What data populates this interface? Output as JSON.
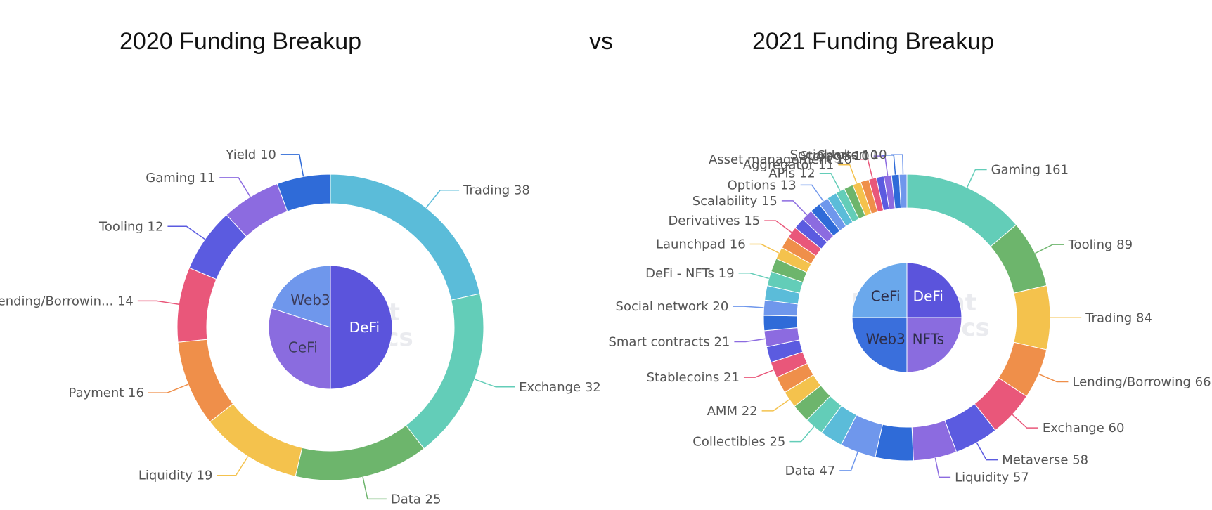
{
  "header": {
    "left_title": "2020 Funding Breakup",
    "vs": "vs",
    "right_title": "2021 Funding Breakup"
  },
  "watermark": [
    "Footprint",
    "Analytics"
  ],
  "chart_data": [
    {
      "type": "pie",
      "title": "2020 Funding Breakup",
      "inner": [
        {
          "label": "DeFi",
          "value": 0.5,
          "color": "#5b54dc",
          "text_color": "#ffffff"
        },
        {
          "label": "CeFi",
          "value": 0.3,
          "color": "#8a6cdf",
          "text_color": "#3c3c5a"
        },
        {
          "label": "Web3",
          "value": 0.2,
          "color": "#6f97ec",
          "text_color": "#3c3c5a"
        }
      ],
      "outer": [
        {
          "label": "Trading",
          "value": 38,
          "color": "#5bbcd9"
        },
        {
          "label": "Exchange",
          "value": 32,
          "color": "#63cdb8"
        },
        {
          "label": "Data",
          "value": 25,
          "color": "#6db56c"
        },
        {
          "label": "Liquidity",
          "value": 19,
          "color": "#f4c24d"
        },
        {
          "label": "Payment",
          "value": 16,
          "color": "#ef8f4a"
        },
        {
          "label": "Lending/Borrowin...",
          "value": 14,
          "color": "#e9577a"
        },
        {
          "label": "Tooling",
          "value": 12,
          "color": "#5b5be0"
        },
        {
          "label": "Gaming",
          "value": 11,
          "color": "#8c6be0"
        },
        {
          "label": "Yield",
          "value": 10,
          "color": "#2f6bd8"
        }
      ]
    },
    {
      "type": "pie",
      "title": "2021 Funding Breakup",
      "inner": [
        {
          "label": "DeFi",
          "value": 0.25,
          "color": "#5b54dc",
          "text_color": "#ffffff"
        },
        {
          "label": "NFTs",
          "value": 0.25,
          "color": "#8a6cdf",
          "text_color": "#2e2e4a"
        },
        {
          "label": "Web3",
          "value": 0.25,
          "color": "#3a6fdc",
          "text_color": "#2e2e4a"
        },
        {
          "label": "CeFi",
          "value": 0.25,
          "color": "#6aa8ec",
          "text_color": "#2e2e4a"
        }
      ],
      "outer": [
        {
          "label": "Gaming",
          "value": 161,
          "color": "#63cdb8"
        },
        {
          "label": "Tooling",
          "value": 89,
          "color": "#6db56c"
        },
        {
          "label": "Trading",
          "value": 84,
          "color": "#f4c24d"
        },
        {
          "label": "Lending/Borrowing",
          "value": 66,
          "color": "#ef8f4a"
        },
        {
          "label": "Exchange",
          "value": 60,
          "color": "#e9577a"
        },
        {
          "label": "Metaverse",
          "value": 58,
          "color": "#5b5be0"
        },
        {
          "label": "Liquidity",
          "value": 57,
          "color": "#8c6be0"
        },
        {
          "label": "",
          "value": 50,
          "color": "#2f6bd8"
        },
        {
          "label": "Data",
          "value": 47,
          "color": "#6f97ec"
        },
        {
          "label": "",
          "value": 30,
          "color": "#5bbcd9"
        },
        {
          "label": "Collectibles",
          "value": 25,
          "color": "#63cdb8"
        },
        {
          "label": "",
          "value": 24,
          "color": "#6db56c"
        },
        {
          "label": "AMM",
          "value": 22,
          "color": "#f4c24d"
        },
        {
          "label": "",
          "value": 22,
          "color": "#ef8f4a"
        },
        {
          "label": "Stablecoins",
          "value": 21,
          "color": "#e9577a"
        },
        {
          "label": "",
          "value": 21,
          "color": "#5b5be0"
        },
        {
          "label": "Smart contracts",
          "value": 21,
          "color": "#8c6be0"
        },
        {
          "label": "",
          "value": 20,
          "color": "#2f6bd8"
        },
        {
          "label": "Social network",
          "value": 20,
          "color": "#6f97ec"
        },
        {
          "label": "",
          "value": 19,
          "color": "#5bbcd9"
        },
        {
          "label": "DeFi - NFTs",
          "value": 19,
          "color": "#63cdb8"
        },
        {
          "label": "",
          "value": 18,
          "color": "#6db56c"
        },
        {
          "label": "Launchpad",
          "value": 16,
          "color": "#f4c24d"
        },
        {
          "label": "",
          "value": 16,
          "color": "#ef8f4a"
        },
        {
          "label": "Derivatives",
          "value": 15,
          "color": "#e9577a"
        },
        {
          "label": "",
          "value": 15,
          "color": "#5b5be0"
        },
        {
          "label": "Scalability",
          "value": 15,
          "color": "#8c6be0"
        },
        {
          "label": "",
          "value": 14,
          "color": "#2f6bd8"
        },
        {
          "label": "Options",
          "value": 13,
          "color": "#6f97ec"
        },
        {
          "label": "",
          "value": 13,
          "color": "#5bbcd9"
        },
        {
          "label": "APIs",
          "value": 12,
          "color": "#63cdb8"
        },
        {
          "label": "",
          "value": 12,
          "color": "#6db56c"
        },
        {
          "label": "Aggregator",
          "value": 11,
          "color": "#f4c24d"
        },
        {
          "label": "",
          "value": 11,
          "color": "#ef8f4a"
        },
        {
          "label": "Asset management",
          "value": 10,
          "color": "#e9577a"
        },
        {
          "label": "",
          "value": 10,
          "color": "#5b5be0"
        },
        {
          "label": "Storage",
          "value": 10,
          "color": "#8c6be0"
        },
        {
          "label": "Sports",
          "value": 10,
          "color": "#2f6bd8"
        },
        {
          "label": "Social token",
          "value": 10,
          "color": "#6f97ec"
        }
      ]
    }
  ]
}
